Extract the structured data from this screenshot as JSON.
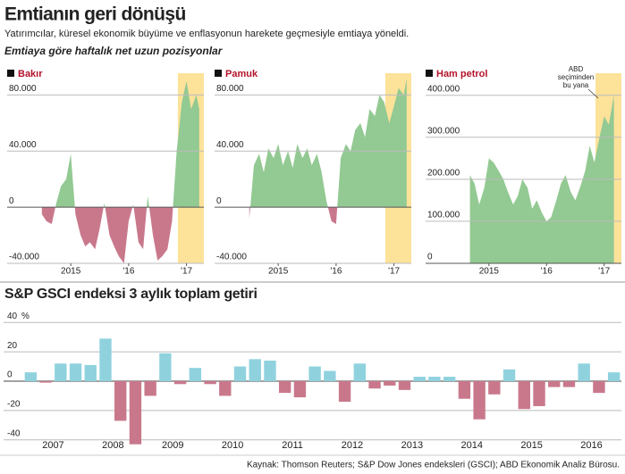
{
  "header": {
    "title": "Emtianın geri dönüşü",
    "subtitle": "Yatırımcılar, küresel ekonomik büyüme ve enflasyonun harekete geçmesiyle emtiaya yöneldi.",
    "section": "Emtiaya göre haftalık net uzun pozisyonlar"
  },
  "source": "Kaynak: Thomson Reuters; S&P Dow Jones endeksleri (GSCI); ABD Ekonomik Analiz Bürosu.",
  "chart_data": [
    {
      "type": "area",
      "title": "Bakır",
      "pos_color": "#93c993",
      "neg_color": "#c9788c",
      "highlight": {
        "from": 2016.85,
        "to": 2017.3,
        "color": "#fde29a"
      },
      "x": [
        2014.5,
        2014.58,
        2014.67,
        2014.75,
        2014.83,
        2014.92,
        2015.0,
        2015.08,
        2015.17,
        2015.25,
        2015.33,
        2015.42,
        2015.5,
        2015.58,
        2015.67,
        2015.75,
        2015.83,
        2015.92,
        2016.0,
        2016.08,
        2016.17,
        2016.25,
        2016.33,
        2016.42,
        2016.5,
        2016.58,
        2016.67,
        2016.75,
        2016.83,
        2016.92,
        2017.0,
        2017.08,
        2017.17,
        2017.22
      ],
      "values": [
        -5000,
        -10000,
        -12000,
        3000,
        15000,
        20000,
        38000,
        -5000,
        -20000,
        -28000,
        -25000,
        -30000,
        -15000,
        3000,
        -20000,
        -28000,
        -35000,
        -40000,
        -10000,
        2000,
        -25000,
        -30000,
        8000,
        -20000,
        -38000,
        -35000,
        -30000,
        -10000,
        40000,
        75000,
        90000,
        70000,
        80000,
        70000
      ],
      "xlim": [
        2013.9,
        2017.3
      ],
      "xticks": [
        {
          "value": 2015,
          "label": "2015"
        },
        {
          "value": 2016,
          "label": "'16"
        },
        {
          "value": 2017,
          "label": "'17"
        }
      ],
      "ylim": [
        -40000,
        93000
      ],
      "yticks": [
        {
          "value": 80000,
          "label": "80.000"
        },
        {
          "value": 40000,
          "label": "40.000"
        },
        0,
        {
          "value": -40000,
          "label": "-40.000"
        }
      ]
    },
    {
      "type": "area",
      "title": "Pamuk",
      "pos_color": "#93c993",
      "neg_color": "#c9788c",
      "highlight": {
        "from": 2016.85,
        "to": 2017.3,
        "color": "#fde29a"
      },
      "x": [
        2014.5,
        2014.58,
        2014.67,
        2014.75,
        2014.83,
        2014.92,
        2015.0,
        2015.08,
        2015.17,
        2015.25,
        2015.33,
        2015.42,
        2015.5,
        2015.58,
        2015.67,
        2015.75,
        2015.83,
        2015.92,
        2016.0,
        2016.08,
        2016.17,
        2016.25,
        2016.33,
        2016.42,
        2016.5,
        2016.58,
        2016.67,
        2016.75,
        2016.83,
        2016.92,
        2017.0,
        2017.08,
        2017.17,
        2017.22
      ],
      "values": [
        -8000,
        30000,
        38000,
        25000,
        42000,
        35000,
        45000,
        30000,
        40000,
        28000,
        45000,
        35000,
        42000,
        30000,
        38000,
        25000,
        5000,
        -10000,
        -12000,
        35000,
        45000,
        40000,
        55000,
        60000,
        50000,
        70000,
        65000,
        80000,
        75000,
        60000,
        72000,
        85000,
        80000,
        92000
      ],
      "xlim": [
        2013.9,
        2017.3
      ],
      "xticks": [
        {
          "value": 2015,
          "label": "2015"
        },
        {
          "value": 2016,
          "label": "'16"
        },
        {
          "value": 2017,
          "label": "'17"
        }
      ],
      "ylim": [
        -40000,
        93000
      ],
      "yticks": [
        {
          "value": 80000,
          "label": "80.000"
        },
        {
          "value": 40000,
          "label": "40.000"
        },
        0,
        {
          "value": -40000,
          "label": "-40.000"
        }
      ]
    },
    {
      "type": "area",
      "title": "Ham petrol",
      "pos_color": "#93c993",
      "neg_color": "#c9788c",
      "highlight": {
        "from": 2016.85,
        "to": 2017.3,
        "color": "#fde29a"
      },
      "annotation_lines": [
        "ABD",
        "seçiminden",
        "bu yana"
      ],
      "x": [
        2014.67,
        2014.75,
        2014.83,
        2014.92,
        2015.0,
        2015.08,
        2015.17,
        2015.25,
        2015.33,
        2015.42,
        2015.5,
        2015.58,
        2015.67,
        2015.75,
        2015.83,
        2015.92,
        2016.0,
        2016.08,
        2016.17,
        2016.25,
        2016.33,
        2016.42,
        2016.5,
        2016.58,
        2016.67,
        2016.75,
        2016.83,
        2016.92,
        2017.0,
        2017.08,
        2017.17
      ],
      "values": [
        210000,
        190000,
        140000,
        180000,
        250000,
        240000,
        220000,
        200000,
        170000,
        140000,
        160000,
        200000,
        180000,
        130000,
        150000,
        120000,
        100000,
        110000,
        150000,
        190000,
        210000,
        170000,
        150000,
        180000,
        220000,
        280000,
        240000,
        300000,
        350000,
        330000,
        400000
      ],
      "xlim": [
        2013.9,
        2017.3
      ],
      "xticks": [
        {
          "value": 2015,
          "label": "2015"
        },
        {
          "value": 2016,
          "label": "'16"
        },
        {
          "value": 2017,
          "label": "'17"
        }
      ],
      "ylim": [
        0,
        444000
      ],
      "yticks": [
        {
          "value": 400000,
          "label": "400.000"
        },
        {
          "value": 300000,
          "label": "300.000"
        },
        {
          "value": 200000,
          "label": "200.000"
        },
        {
          "value": 100000,
          "label": "100.000"
        },
        0
      ]
    },
    {
      "type": "bar",
      "title": "S&P GSCI endeksi 3 aylık toplam getiri",
      "pos_color": "#8fd2de",
      "neg_color": "#c9788c",
      "categories": [
        "2007",
        "2008",
        "2009",
        "2010",
        "2011",
        "2012",
        "2013",
        "2014",
        "2015",
        "2016"
      ],
      "values": [
        [
          6,
          -1,
          12,
          12
        ],
        [
          11,
          29,
          -27,
          -43
        ],
        [
          -10,
          19,
          -2,
          9
        ],
        [
          -2,
          -10,
          10,
          15
        ],
        [
          14,
          -8,
          -11,
          10
        ],
        [
          7,
          -14,
          12,
          -5
        ],
        [
          -3,
          -6,
          3,
          3
        ],
        [
          3,
          -12,
          -26,
          -9
        ],
        [
          8,
          -19,
          -17,
          -4
        ],
        [
          -4,
          12,
          -8,
          6
        ]
      ],
      "ylim": [
        -45,
        45
      ],
      "yticks": [
        40,
        20,
        0,
        -20,
        -40
      ],
      "y_unit": "%"
    }
  ]
}
